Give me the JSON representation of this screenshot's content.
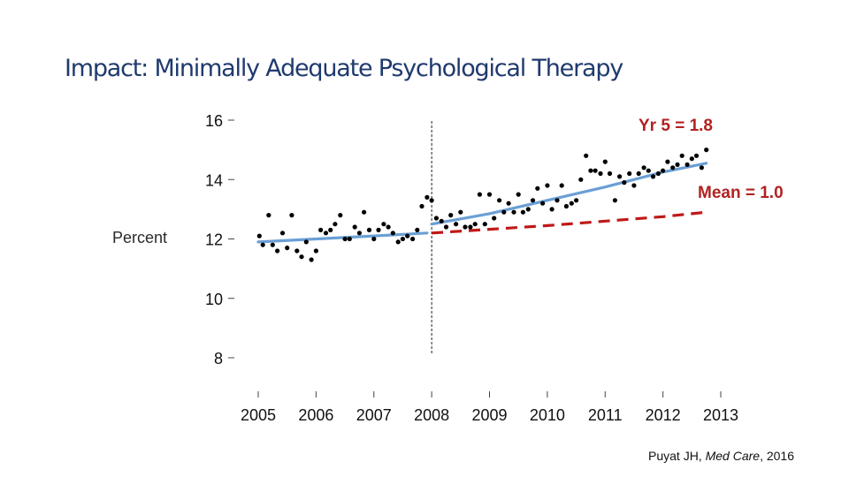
{
  "title": "Impact: Minimally Adequate Psychological Therapy",
  "citation": {
    "prefix": "Puyat JH, ",
    "journal": "Med Care",
    "suffix": ", 2016"
  },
  "chart_data": {
    "type": "scatter",
    "ylabel": "Percent",
    "xlabel": "",
    "x_ticks": [
      "2005",
      "2006",
      "2007",
      "2008",
      "2009",
      "2010",
      "2011",
      "2012",
      "2013"
    ],
    "y_ticks": [
      "8",
      "10",
      "12",
      "14",
      "16"
    ],
    "xlim": [
      2005,
      2013
    ],
    "ylim": [
      8,
      16
    ],
    "grid": false,
    "intervention_year": 2008,
    "annotations": {
      "trend_label": "Yr 5 = 1.8",
      "counterfactual_label": "Mean = 1.0"
    },
    "colors": {
      "points": "#000000",
      "trend": "#6a9fd4",
      "counterfactual": "#c01818",
      "intervention_line": "#222222"
    },
    "points": [
      [
        2005.02,
        12.1
      ],
      [
        2005.08,
        11.8
      ],
      [
        2005.18,
        12.8
      ],
      [
        2005.25,
        11.8
      ],
      [
        2005.33,
        11.6
      ],
      [
        2005.42,
        12.2
      ],
      [
        2005.5,
        11.7
      ],
      [
        2005.58,
        12.8
      ],
      [
        2005.67,
        11.6
      ],
      [
        2005.75,
        11.4
      ],
      [
        2005.83,
        11.9
      ],
      [
        2005.92,
        11.3
      ],
      [
        2006.0,
        11.6
      ],
      [
        2006.08,
        12.3
      ],
      [
        2006.17,
        12.2
      ],
      [
        2006.25,
        12.3
      ],
      [
        2006.33,
        12.5
      ],
      [
        2006.42,
        12.8
      ],
      [
        2006.5,
        12.0
      ],
      [
        2006.58,
        12.0
      ],
      [
        2006.67,
        12.4
      ],
      [
        2006.75,
        12.2
      ],
      [
        2006.83,
        12.9
      ],
      [
        2006.92,
        12.3
      ],
      [
        2007.0,
        12.0
      ],
      [
        2007.08,
        12.3
      ],
      [
        2007.17,
        12.5
      ],
      [
        2007.25,
        12.4
      ],
      [
        2007.33,
        12.2
      ],
      [
        2007.42,
        11.9
      ],
      [
        2007.5,
        12.0
      ],
      [
        2007.58,
        12.1
      ],
      [
        2007.67,
        12.0
      ],
      [
        2007.75,
        12.3
      ],
      [
        2007.83,
        13.1
      ],
      [
        2007.92,
        13.4
      ],
      [
        2008.0,
        13.3
      ],
      [
        2008.08,
        12.7
      ],
      [
        2008.17,
        12.6
      ],
      [
        2008.25,
        12.4
      ],
      [
        2008.33,
        12.8
      ],
      [
        2008.42,
        12.5
      ],
      [
        2008.5,
        12.9
      ],
      [
        2008.58,
        12.4
      ],
      [
        2008.67,
        12.4
      ],
      [
        2008.75,
        12.5
      ],
      [
        2008.83,
        13.5
      ],
      [
        2008.92,
        12.5
      ],
      [
        2009.0,
        13.5
      ],
      [
        2009.08,
        12.7
      ],
      [
        2009.17,
        13.3
      ],
      [
        2009.25,
        12.9
      ],
      [
        2009.33,
        13.2
      ],
      [
        2009.42,
        12.9
      ],
      [
        2009.5,
        13.5
      ],
      [
        2009.58,
        12.9
      ],
      [
        2009.67,
        13.0
      ],
      [
        2009.75,
        13.3
      ],
      [
        2009.83,
        13.7
      ],
      [
        2009.92,
        13.2
      ],
      [
        2010.0,
        13.8
      ],
      [
        2010.08,
        13.0
      ],
      [
        2010.17,
        13.3
      ],
      [
        2010.25,
        13.8
      ],
      [
        2010.33,
        13.1
      ],
      [
        2010.42,
        13.2
      ],
      [
        2010.5,
        13.3
      ],
      [
        2010.58,
        14.0
      ],
      [
        2010.67,
        14.8
      ],
      [
        2010.75,
        14.3
      ],
      [
        2010.83,
        14.3
      ],
      [
        2010.92,
        14.2
      ],
      [
        2011.0,
        14.6
      ],
      [
        2011.08,
        14.2
      ],
      [
        2011.17,
        13.3
      ],
      [
        2011.25,
        14.1
      ],
      [
        2011.33,
        13.9
      ],
      [
        2011.42,
        14.2
      ],
      [
        2011.5,
        13.8
      ],
      [
        2011.58,
        14.2
      ],
      [
        2011.67,
        14.4
      ],
      [
        2011.75,
        14.3
      ],
      [
        2011.83,
        14.1
      ],
      [
        2011.92,
        14.2
      ],
      [
        2012.0,
        14.3
      ],
      [
        2012.08,
        14.6
      ],
      [
        2012.17,
        14.4
      ],
      [
        2012.25,
        14.5
      ],
      [
        2012.33,
        14.8
      ],
      [
        2012.42,
        14.5
      ],
      [
        2012.5,
        14.7
      ],
      [
        2012.58,
        14.8
      ],
      [
        2012.67,
        14.4
      ],
      [
        2012.75,
        15.0
      ]
    ],
    "series": [
      {
        "type": "line",
        "style": "solid",
        "x": [
          2005.0,
          2006.0,
          2007.0,
          2007.92
        ],
        "y": [
          11.9,
          12.0,
          12.1,
          12.2
        ]
      },
      {
        "type": "line",
        "style": "solid",
        "x": [
          2008.0,
          2009.0,
          2010.0,
          2011.0,
          2012.0,
          2012.75
        ],
        "y": [
          12.5,
          12.85,
          13.3,
          13.75,
          14.25,
          14.55
        ]
      },
      {
        "type": "line",
        "style": "dashed",
        "x": [
          2008.0,
          2010.0,
          2012.0,
          2012.75
        ],
        "y": [
          12.2,
          12.45,
          12.75,
          12.9
        ]
      }
    ]
  }
}
